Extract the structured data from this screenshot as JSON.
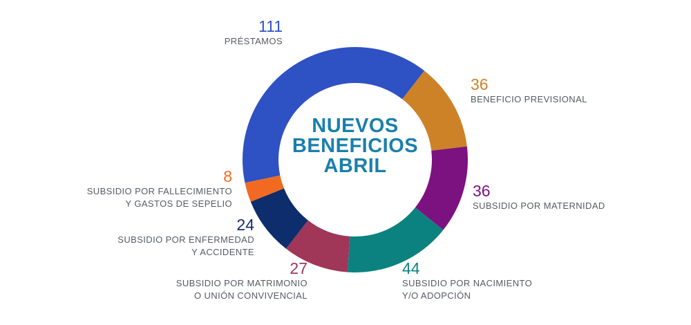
{
  "chart_data": {
    "type": "pie",
    "title": [
      "NUEVOS",
      "BENEFICIOS",
      "ABRIL"
    ],
    "slices": [
      {
        "value": 111,
        "value_label": "111",
        "label": [
          "PRÉSTAMOS"
        ],
        "color": "#2e51c3"
      },
      {
        "value": 36,
        "value_label": "36",
        "label": [
          "BENEFICIO PREVISIONAL"
        ],
        "color": "#cd8227"
      },
      {
        "value": 36,
        "value_label": "36",
        "label": [
          "SUBSIDIO POR MATERNIDAD"
        ],
        "color": "#7b1280"
      },
      {
        "value": 44,
        "value_label": "44",
        "label": [
          "SUBSIDIO POR NACIMIENTO",
          "Y/O ADOPCIÓN"
        ],
        "color": "#0b827f"
      },
      {
        "value": 27,
        "value_label": "27",
        "label": [
          "SUBSIDIO POR MATRIMONIO",
          "O UNIÓN CONVIVENCIAL"
        ],
        "color": "#a03658"
      },
      {
        "value": 24,
        "value_label": "24",
        "label": [
          "SUBSIDIO POR ENFERMEDAD",
          "Y ACCIDENTE"
        ],
        "color": "#0d2d6c"
      },
      {
        "value": 8,
        "value_label": "8",
        "label": [
          "SUBSIDIO POR FALLECIMIENTO",
          "Y GASTOS DE SEPELIO"
        ],
        "color": "#f26a21"
      }
    ]
  }
}
